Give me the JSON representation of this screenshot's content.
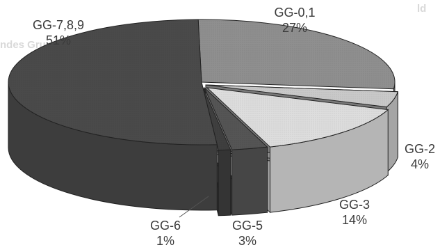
{
  "chart_data": {
    "type": "pie",
    "style": "3d-exploded",
    "title": "",
    "legend": "none",
    "slices": [
      {
        "label": "GG-0,1",
        "value": 27,
        "display": "27%",
        "color": "#8f8f8f"
      },
      {
        "label": "GG-2",
        "value": 4,
        "display": "4%",
        "color": "#c9c9c9"
      },
      {
        "label": "GG-3",
        "value": 14,
        "display": "14%",
        "color": "#dddddd"
      },
      {
        "label": "GG-5",
        "value": 3,
        "display": "3%",
        "color": "#555555"
      },
      {
        "label": "GG-6",
        "value": 1,
        "display": "1%",
        "color": "#3f3f3f"
      },
      {
        "label": "GG-7,8,9",
        "value": 51,
        "display": "51%",
        "color": "#4a4a4a"
      }
    ]
  },
  "background_text": {
    "line_top": "ld",
    "line_header": "ndes Gruppe Gliederungsnummer"
  }
}
